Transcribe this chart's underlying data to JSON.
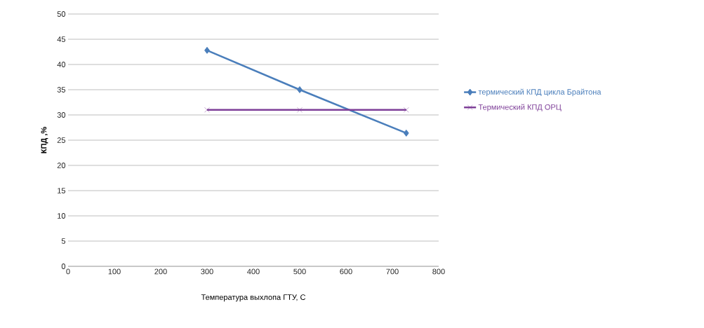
{
  "chart_data": {
    "type": "line",
    "xlabel": "Температура выхлопа ГТУ, С",
    "ylabel": "КПД ,%",
    "xlim": [
      0,
      800
    ],
    "xticks": [
      0,
      100,
      200,
      300,
      400,
      500,
      600,
      700,
      800
    ],
    "ylim": [
      0,
      50
    ],
    "yticks": [
      0,
      5,
      10,
      15,
      20,
      25,
      30,
      35,
      40,
      45,
      50
    ],
    "grid": "y",
    "legend": "right",
    "line_style": "solid",
    "series": [
      {
        "name": "термический КПД цикла Брайтона",
        "color": "#4a7ebb",
        "marker": "diamond",
        "x": [
          300,
          500,
          730
        ],
        "values": [
          42.8,
          35,
          26.4
        ]
      },
      {
        "name": "Термический КПД ОРЦ",
        "color": "#7e3f98",
        "marker": "cross",
        "x": [
          300,
          500,
          730
        ],
        "values": [
          31,
          31,
          31
        ]
      }
    ]
  }
}
